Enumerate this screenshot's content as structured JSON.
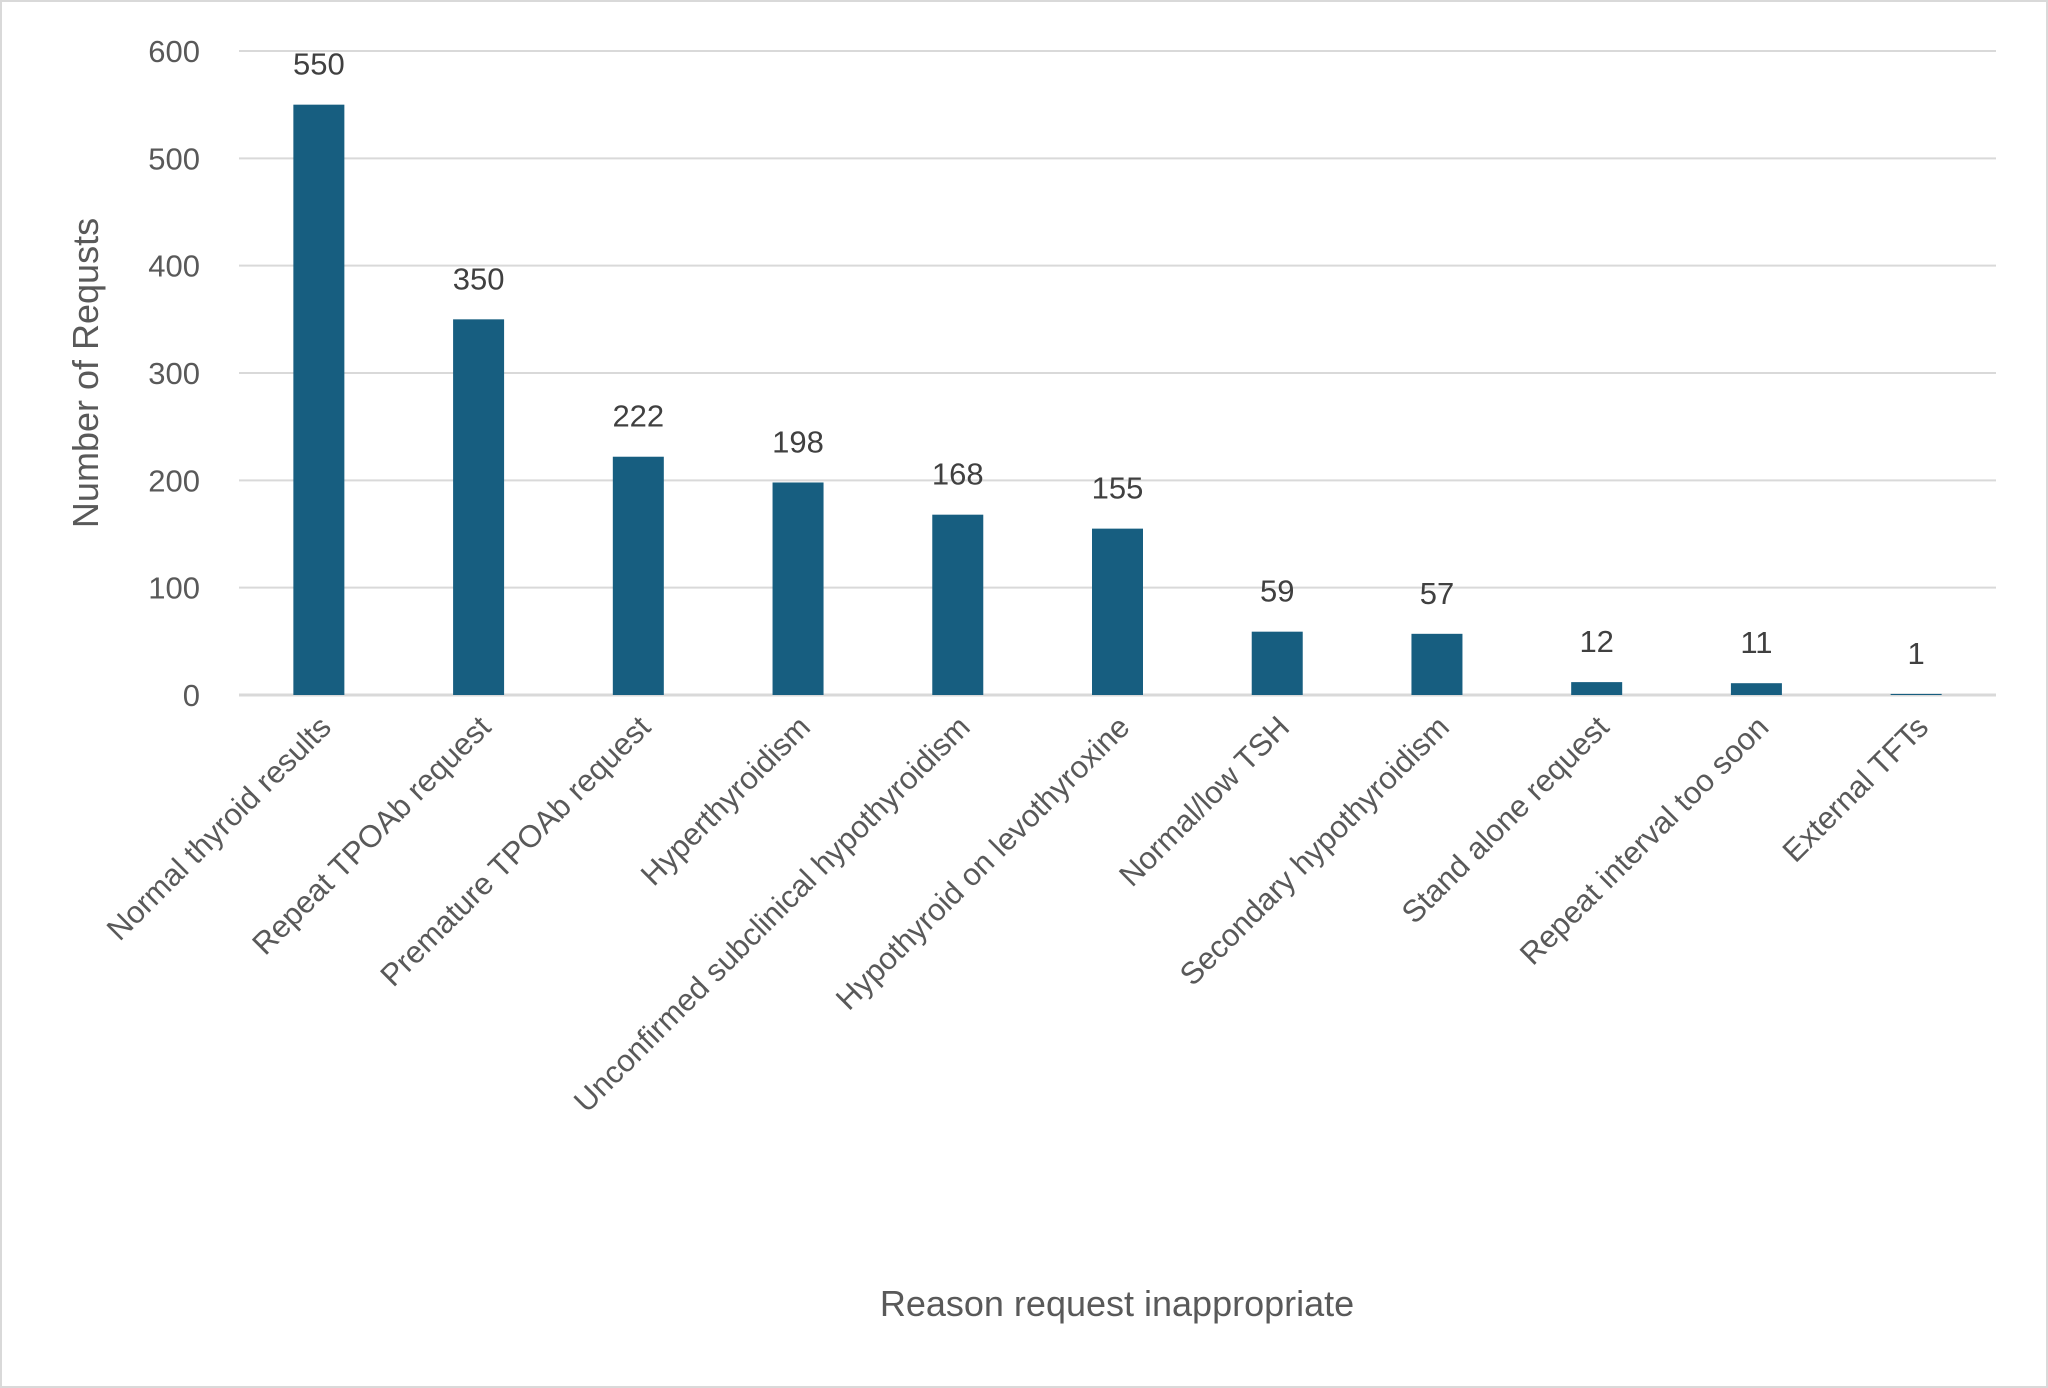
{
  "chart_data": {
    "type": "bar",
    "title": "",
    "xlabel": "Reason request inappropriate",
    "ylabel": "Number of Requsts",
    "ylim": [
      0,
      600
    ],
    "yticks": [
      0,
      100,
      200,
      300,
      400,
      500,
      600
    ],
    "grid": true,
    "legend": "none",
    "bar_color": "#175e80",
    "categories": [
      "Normal thyroid results",
      "Repeat TPOAb request",
      "Premature TPOAb request",
      "Hyperthyroidism",
      "Unconfirmed subclinical hypothyroidism",
      "Hypothyroid on levothyroxine",
      "Normal/low TSH",
      "Secondary hypothyroidism",
      "Stand alone request",
      "Repeat interval too soon",
      "External TFTs"
    ],
    "values": [
      550,
      350,
      222,
      198,
      168,
      155,
      59,
      57,
      12,
      11,
      1
    ]
  }
}
